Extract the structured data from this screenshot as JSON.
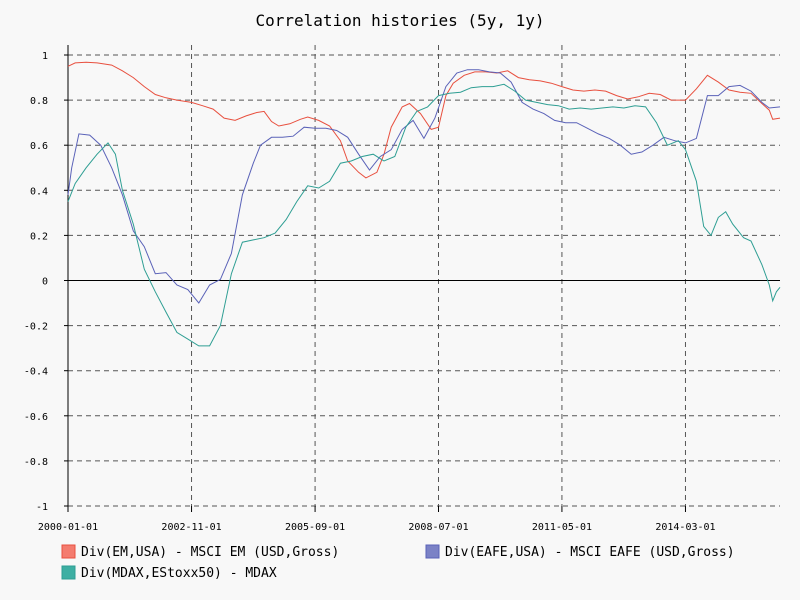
{
  "chart_data": {
    "type": "line",
    "title": "Correlation histories (5y, 1y)",
    "xlabel": "",
    "ylabel": "",
    "ylim": [
      -1,
      1
    ],
    "xlim": [
      "2000-01-01",
      "2016-05-01"
    ],
    "yticks": [
      -1,
      -0.8,
      -0.6,
      -0.4,
      -0.2,
      0,
      0.2,
      0.4,
      0.6,
      0.8,
      1
    ],
    "ytick_labels": [
      "-1",
      "-0.8",
      "-0.6",
      "-0.4",
      "-0.2",
      "0",
      "0.2",
      "0.4",
      "0.6",
      "0.8",
      "1"
    ],
    "xticks": [
      "2000-01-01",
      "2002-11-01",
      "2005-09-01",
      "2008-07-01",
      "2011-05-01",
      "2014-03-01"
    ],
    "grid": true,
    "legend_position": "bottom",
    "series": [
      {
        "name": "Div(EM,USA) - MSCI EM (USD,Gross)",
        "color": "#f47c6f",
        "stroke": "#e8503f",
        "points": [
          [
            "2000-01-01",
            0.95
          ],
          [
            "2000-03-01",
            0.965
          ],
          [
            "2000-06-01",
            0.968
          ],
          [
            "2000-09-01",
            0.965
          ],
          [
            "2001-01-01",
            0.955
          ],
          [
            "2001-04-01",
            0.93
          ],
          [
            "2001-07-01",
            0.9
          ],
          [
            "2001-10-01",
            0.86
          ],
          [
            "2002-01-01",
            0.825
          ],
          [
            "2002-04-01",
            0.81
          ],
          [
            "2002-07-01",
            0.8
          ],
          [
            "2002-11-01",
            0.79
          ],
          [
            "2003-02-01",
            0.775
          ],
          [
            "2003-05-01",
            0.76
          ],
          [
            "2003-08-01",
            0.72
          ],
          [
            "2003-11-01",
            0.71
          ],
          [
            "2004-02-01",
            0.73
          ],
          [
            "2004-05-01",
            0.745
          ],
          [
            "2004-07-01",
            0.75
          ],
          [
            "2004-09-01",
            0.705
          ],
          [
            "2004-11-01",
            0.685
          ],
          [
            "2005-02-01",
            0.695
          ],
          [
            "2005-05-01",
            0.715
          ],
          [
            "2005-07-01",
            0.725
          ],
          [
            "2005-10-01",
            0.71
          ],
          [
            "2006-01-01",
            0.685
          ],
          [
            "2006-04-01",
            0.62
          ],
          [
            "2006-06-01",
            0.53
          ],
          [
            "2006-09-01",
            0.48
          ],
          [
            "2006-11-01",
            0.455
          ],
          [
            "2007-02-01",
            0.48
          ],
          [
            "2007-04-01",
            0.56
          ],
          [
            "2007-06-01",
            0.68
          ],
          [
            "2007-09-01",
            0.77
          ],
          [
            "2007-11-01",
            0.785
          ],
          [
            "2008-02-01",
            0.74
          ],
          [
            "2008-05-01",
            0.67
          ],
          [
            "2008-07-01",
            0.68
          ],
          [
            "2008-09-01",
            0.82
          ],
          [
            "2008-11-01",
            0.875
          ],
          [
            "2009-02-01",
            0.91
          ],
          [
            "2009-05-01",
            0.925
          ],
          [
            "2009-08-01",
            0.925
          ],
          [
            "2009-11-01",
            0.92
          ],
          [
            "2010-02-01",
            0.93
          ],
          [
            "2010-05-01",
            0.9
          ],
          [
            "2010-08-01",
            0.89
          ],
          [
            "2010-11-01",
            0.885
          ],
          [
            "2011-02-01",
            0.875
          ],
          [
            "2011-05-01",
            0.86
          ],
          [
            "2011-08-01",
            0.845
          ],
          [
            "2011-11-01",
            0.84
          ],
          [
            "2012-02-01",
            0.845
          ],
          [
            "2012-05-01",
            0.84
          ],
          [
            "2012-08-01",
            0.82
          ],
          [
            "2012-11-01",
            0.805
          ],
          [
            "2013-02-01",
            0.815
          ],
          [
            "2013-05-01",
            0.83
          ],
          [
            "2013-08-01",
            0.825
          ],
          [
            "2013-11-01",
            0.8
          ],
          [
            "2014-03-01",
            0.8
          ],
          [
            "2014-06-01",
            0.85
          ],
          [
            "2014-09-01",
            0.91
          ],
          [
            "2014-12-01",
            0.88
          ],
          [
            "2015-03-01",
            0.845
          ],
          [
            "2015-06-01",
            0.835
          ],
          [
            "2015-09-01",
            0.83
          ],
          [
            "2015-12-01",
            0.785
          ],
          [
            "2016-02-01",
            0.755
          ],
          [
            "2016-03-01",
            0.715
          ],
          [
            "2016-05-01",
            0.72
          ]
        ]
      },
      {
        "name": "Div(EAFE,USA) - MSCI EAFE (USD,Gross)",
        "color": "#7b82c6",
        "stroke": "#5a62b8",
        "points": [
          [
            "2000-01-01",
            0.38
          ],
          [
            "2000-02-01",
            0.5
          ],
          [
            "2000-04-01",
            0.65
          ],
          [
            "2000-07-01",
            0.645
          ],
          [
            "2000-10-01",
            0.6
          ],
          [
            "2001-01-01",
            0.5
          ],
          [
            "2001-04-01",
            0.38
          ],
          [
            "2001-07-01",
            0.22
          ],
          [
            "2001-10-01",
            0.15
          ],
          [
            "2002-01-01",
            0.03
          ],
          [
            "2002-04-01",
            0.035
          ],
          [
            "2002-07-01",
            -0.02
          ],
          [
            "2002-10-01",
            -0.04
          ],
          [
            "2003-01-01",
            -0.1
          ],
          [
            "2003-04-01",
            -0.02
          ],
          [
            "2003-07-01",
            0.005
          ],
          [
            "2003-10-01",
            0.12
          ],
          [
            "2004-01-01",
            0.38
          ],
          [
            "2004-04-01",
            0.52
          ],
          [
            "2004-06-01",
            0.6
          ],
          [
            "2004-09-01",
            0.635
          ],
          [
            "2004-12-01",
            0.635
          ],
          [
            "2005-03-01",
            0.64
          ],
          [
            "2005-06-01",
            0.68
          ],
          [
            "2005-09-01",
            0.675
          ],
          [
            "2005-12-01",
            0.675
          ],
          [
            "2006-03-01",
            0.665
          ],
          [
            "2006-06-01",
            0.635
          ],
          [
            "2006-09-01",
            0.56
          ],
          [
            "2006-12-01",
            0.49
          ],
          [
            "2007-03-01",
            0.55
          ],
          [
            "2007-06-01",
            0.58
          ],
          [
            "2007-09-01",
            0.67
          ],
          [
            "2007-12-01",
            0.71
          ],
          [
            "2008-03-01",
            0.63
          ],
          [
            "2008-06-01",
            0.72
          ],
          [
            "2008-09-01",
            0.86
          ],
          [
            "2008-12-01",
            0.92
          ],
          [
            "2009-03-01",
            0.935
          ],
          [
            "2009-06-01",
            0.935
          ],
          [
            "2009-09-01",
            0.925
          ],
          [
            "2009-12-01",
            0.92
          ],
          [
            "2010-03-01",
            0.88
          ],
          [
            "2010-06-01",
            0.79
          ],
          [
            "2010-09-01",
            0.76
          ],
          [
            "2010-12-01",
            0.74
          ],
          [
            "2011-03-01",
            0.71
          ],
          [
            "2011-06-01",
            0.7
          ],
          [
            "2011-09-01",
            0.7
          ],
          [
            "2011-12-01",
            0.675
          ],
          [
            "2012-03-01",
            0.65
          ],
          [
            "2012-06-01",
            0.63
          ],
          [
            "2012-09-01",
            0.6
          ],
          [
            "2012-12-01",
            0.56
          ],
          [
            "2013-03-01",
            0.57
          ],
          [
            "2013-06-01",
            0.6
          ],
          [
            "2013-09-01",
            0.635
          ],
          [
            "2013-12-01",
            0.62
          ],
          [
            "2014-03-01",
            0.61
          ],
          [
            "2014-06-01",
            0.63
          ],
          [
            "2014-09-01",
            0.82
          ],
          [
            "2014-12-01",
            0.82
          ],
          [
            "2015-03-01",
            0.86
          ],
          [
            "2015-06-01",
            0.865
          ],
          [
            "2015-09-01",
            0.84
          ],
          [
            "2015-12-01",
            0.79
          ],
          [
            "2016-02-01",
            0.765
          ],
          [
            "2016-05-01",
            0.77
          ]
        ]
      },
      {
        "name": "Div(MDAX,EStoxx50) - MDAX",
        "color": "#3dafa3",
        "stroke": "#2e9e93",
        "points": [
          [
            "2000-01-01",
            0.35
          ],
          [
            "2000-03-01",
            0.43
          ],
          [
            "2000-06-01",
            0.5
          ],
          [
            "2000-09-01",
            0.56
          ],
          [
            "2000-12-01",
            0.61
          ],
          [
            "2001-02-01",
            0.56
          ],
          [
            "2001-04-01",
            0.4
          ],
          [
            "2001-07-01",
            0.25
          ],
          [
            "2001-10-01",
            0.05
          ],
          [
            "2002-01-01",
            -0.05
          ],
          [
            "2002-04-01",
            -0.14
          ],
          [
            "2002-07-01",
            -0.23
          ],
          [
            "2002-10-01",
            -0.26
          ],
          [
            "2003-01-01",
            -0.29
          ],
          [
            "2003-04-01",
            -0.29
          ],
          [
            "2003-07-01",
            -0.2
          ],
          [
            "2003-10-01",
            0.03
          ],
          [
            "2004-01-01",
            0.17
          ],
          [
            "2004-04-01",
            0.18
          ],
          [
            "2004-07-01",
            0.19
          ],
          [
            "2004-10-01",
            0.21
          ],
          [
            "2005-01-01",
            0.27
          ],
          [
            "2005-04-01",
            0.35
          ],
          [
            "2005-07-01",
            0.42
          ],
          [
            "2005-10-01",
            0.41
          ],
          [
            "2006-01-01",
            0.44
          ],
          [
            "2006-04-01",
            0.52
          ],
          [
            "2006-07-01",
            0.53
          ],
          [
            "2006-10-01",
            0.55
          ],
          [
            "2007-01-01",
            0.56
          ],
          [
            "2007-04-01",
            0.53
          ],
          [
            "2007-07-01",
            0.55
          ],
          [
            "2007-10-01",
            0.68
          ],
          [
            "2008-01-01",
            0.75
          ],
          [
            "2008-04-01",
            0.77
          ],
          [
            "2008-07-01",
            0.82
          ],
          [
            "2008-10-01",
            0.83
          ],
          [
            "2009-01-01",
            0.835
          ],
          [
            "2009-04-01",
            0.855
          ],
          [
            "2009-07-01",
            0.86
          ],
          [
            "2009-10-01",
            0.86
          ],
          [
            "2010-01-01",
            0.87
          ],
          [
            "2010-04-01",
            0.84
          ],
          [
            "2010-07-01",
            0.8
          ],
          [
            "2010-10-01",
            0.79
          ],
          [
            "2011-01-01",
            0.78
          ],
          [
            "2011-04-01",
            0.775
          ],
          [
            "2011-07-01",
            0.76
          ],
          [
            "2011-10-01",
            0.765
          ],
          [
            "2012-01-01",
            0.76
          ],
          [
            "2012-04-01",
            0.765
          ],
          [
            "2012-07-01",
            0.77
          ],
          [
            "2012-10-01",
            0.765
          ],
          [
            "2013-01-01",
            0.775
          ],
          [
            "2013-04-01",
            0.77
          ],
          [
            "2013-07-01",
            0.7
          ],
          [
            "2013-10-01",
            0.6
          ],
          [
            "2014-01-01",
            0.62
          ],
          [
            "2014-03-01",
            0.58
          ],
          [
            "2014-06-01",
            0.44
          ],
          [
            "2014-08-01",
            0.24
          ],
          [
            "2014-10-01",
            0.2
          ],
          [
            "2014-12-01",
            0.28
          ],
          [
            "2015-02-01",
            0.305
          ],
          [
            "2015-04-01",
            0.25
          ],
          [
            "2015-07-01",
            0.19
          ],
          [
            "2015-09-01",
            0.175
          ],
          [
            "2015-12-01",
            0.07
          ],
          [
            "2016-02-01",
            -0.02
          ],
          [
            "2016-03-01",
            -0.09
          ],
          [
            "2016-04-01",
            -0.05
          ],
          [
            "2016-05-01",
            -0.03
          ]
        ]
      }
    ]
  }
}
